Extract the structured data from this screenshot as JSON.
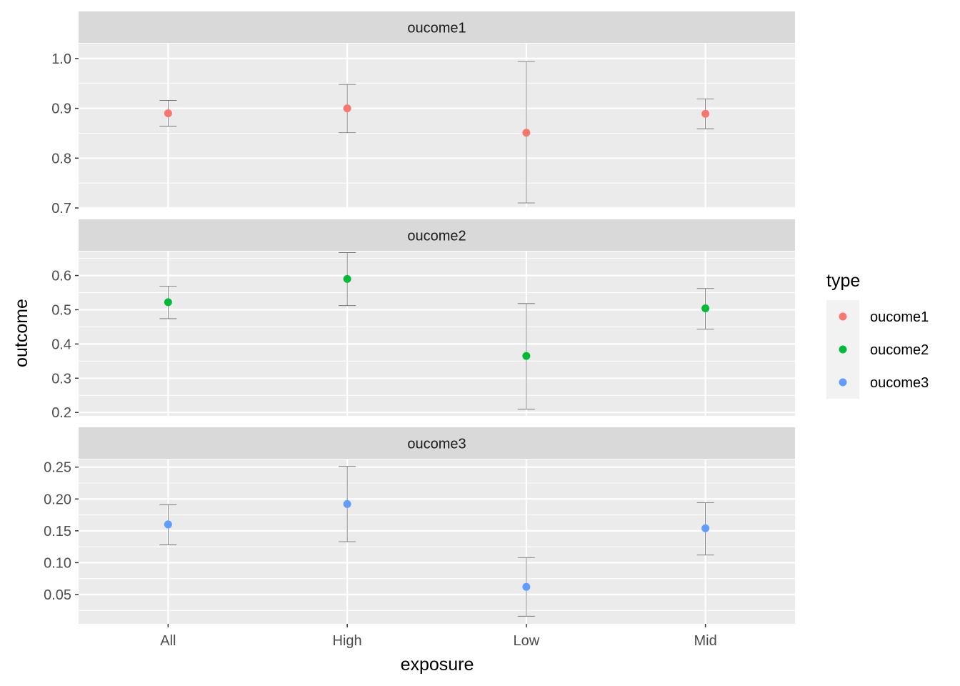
{
  "chart_data": {
    "type": "scatter",
    "xlabel": "exposure",
    "ylabel": "outcome",
    "categories": [
      "All",
      "High",
      "Low",
      "Mid"
    ],
    "legend": {
      "title": "type",
      "position": "right"
    },
    "grid": true,
    "facets": [
      {
        "name": "oucome1",
        "color": "#F8766D",
        "ylim": [
          0.7,
          1.03
        ],
        "yticks": [
          0.7,
          0.8,
          0.9,
          1.0
        ],
        "ytick_labels": [
          "0.7",
          "0.8",
          "0.9",
          "1.0"
        ],
        "values": [
          0.89,
          0.9,
          0.851,
          0.889
        ],
        "lower": [
          0.864,
          0.851,
          0.71,
          0.859
        ],
        "upper": [
          0.916,
          0.948,
          0.994,
          0.919
        ]
      },
      {
        "name": "oucome2",
        "color": "#00BA38",
        "ylim": [
          0.19,
          0.67
        ],
        "yticks": [
          0.2,
          0.3,
          0.4,
          0.5,
          0.6
        ],
        "ytick_labels": [
          "0.2",
          "0.3",
          "0.4",
          "0.5",
          "0.6"
        ],
        "values": [
          0.522,
          0.59,
          0.365,
          0.504
        ],
        "lower": [
          0.474,
          0.512,
          0.21,
          0.443
        ],
        "upper": [
          0.569,
          0.667,
          0.518,
          0.562
        ]
      },
      {
        "name": "oucome3",
        "color": "#619CFF",
        "ylim": [
          0.004,
          0.262
        ],
        "yticks": [
          0.05,
          0.1,
          0.15,
          0.2,
          0.25
        ],
        "ytick_labels": [
          "0.05",
          "0.10",
          "0.15",
          "0.20",
          "0.25"
        ],
        "values": [
          0.16,
          0.192,
          0.062,
          0.154
        ],
        "lower": [
          0.128,
          0.133,
          0.016,
          0.112
        ],
        "upper": [
          0.191,
          0.251,
          0.108,
          0.194
        ]
      }
    ]
  }
}
